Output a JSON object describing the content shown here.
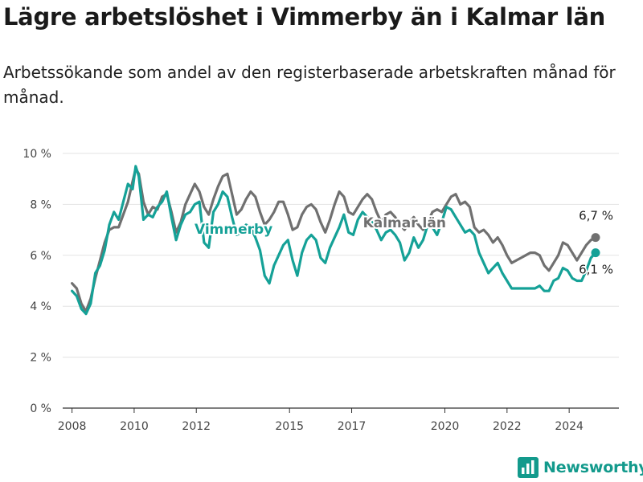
{
  "header": {
    "title": "Lägre arbetslöshet i Vimmerby än i Kalmar län",
    "subtitle": "Arbetssökande som andel av den registerbaserade arbetskraften månad för månad."
  },
  "brand": {
    "name": "Newsworthy",
    "icon": "bar-chart-logo-icon",
    "color": "#139a8c"
  },
  "chart_data": {
    "type": "line",
    "title": "",
    "xlabel": "",
    "ylabel": "",
    "ylim": [
      0,
      10
    ],
    "xlim": [
      2007.7,
      2025.6
    ],
    "y_ticks": [
      0,
      2,
      4,
      6,
      8,
      10
    ],
    "y_tick_labels": [
      "0 %",
      "2 %",
      "4 %",
      "6 %",
      "8 %",
      "10 %"
    ],
    "x_ticks": [
      2008,
      2010,
      2012,
      2015,
      2017,
      2020,
      2022,
      2024
    ],
    "x_tick_labels": [
      "2008",
      "2010",
      "2012",
      "2015",
      "2017",
      "2020",
      "2022",
      "2024"
    ],
    "grid": "horizontal",
    "series": [
      {
        "name": "Kalmar län",
        "color": "#707070",
        "end_label": "6,7 %",
        "points": [
          [
            2008.0,
            4.9
          ],
          [
            2008.15,
            4.7
          ],
          [
            2008.3,
            4.1
          ],
          [
            2008.45,
            3.8
          ],
          [
            2008.6,
            4.3
          ],
          [
            2008.75,
            5.1
          ],
          [
            2008.9,
            5.8
          ],
          [
            2009.05,
            6.5
          ],
          [
            2009.2,
            7.0
          ],
          [
            2009.35,
            7.1
          ],
          [
            2009.5,
            7.1
          ],
          [
            2009.65,
            7.6
          ],
          [
            2009.8,
            8.1
          ],
          [
            2009.95,
            8.9
          ],
          [
            2010.05,
            9.4
          ],
          [
            2010.15,
            9.2
          ],
          [
            2010.3,
            8.1
          ],
          [
            2010.45,
            7.6
          ],
          [
            2010.6,
            7.9
          ],
          [
            2010.75,
            7.8
          ],
          [
            2010.9,
            8.3
          ],
          [
            2011.05,
            8.4
          ],
          [
            2011.2,
            7.7
          ],
          [
            2011.35,
            6.9
          ],
          [
            2011.5,
            7.3
          ],
          [
            2011.65,
            8.0
          ],
          [
            2011.8,
            8.4
          ],
          [
            2011.95,
            8.8
          ],
          [
            2012.1,
            8.5
          ],
          [
            2012.25,
            7.9
          ],
          [
            2012.4,
            7.6
          ],
          [
            2012.55,
            8.2
          ],
          [
            2012.7,
            8.7
          ],
          [
            2012.85,
            9.1
          ],
          [
            2013.0,
            9.2
          ],
          [
            2013.15,
            8.4
          ],
          [
            2013.3,
            7.6
          ],
          [
            2013.45,
            7.8
          ],
          [
            2013.6,
            8.2
          ],
          [
            2013.75,
            8.5
          ],
          [
            2013.9,
            8.3
          ],
          [
            2014.05,
            7.7
          ],
          [
            2014.2,
            7.2
          ],
          [
            2014.35,
            7.4
          ],
          [
            2014.5,
            7.7
          ],
          [
            2014.65,
            8.1
          ],
          [
            2014.8,
            8.1
          ],
          [
            2014.95,
            7.6
          ],
          [
            2015.1,
            7.0
          ],
          [
            2015.25,
            7.1
          ],
          [
            2015.4,
            7.6
          ],
          [
            2015.55,
            7.9
          ],
          [
            2015.7,
            8.0
          ],
          [
            2015.85,
            7.8
          ],
          [
            2016.0,
            7.3
          ],
          [
            2016.15,
            6.9
          ],
          [
            2016.3,
            7.4
          ],
          [
            2016.45,
            8.0
          ],
          [
            2016.6,
            8.5
          ],
          [
            2016.75,
            8.3
          ],
          [
            2016.9,
            7.7
          ],
          [
            2017.05,
            7.6
          ],
          [
            2017.2,
            7.9
          ],
          [
            2017.35,
            8.2
          ],
          [
            2017.5,
            8.4
          ],
          [
            2017.65,
            8.2
          ],
          [
            2017.8,
            7.7
          ],
          [
            2017.95,
            7.3
          ],
          [
            2018.1,
            7.6
          ],
          [
            2018.25,
            7.7
          ],
          [
            2018.4,
            7.5
          ],
          [
            2018.55,
            7.2
          ],
          [
            2018.7,
            7.0
          ],
          [
            2018.85,
            7.3
          ],
          [
            2019.0,
            7.5
          ],
          [
            2019.15,
            7.2
          ],
          [
            2019.3,
            7.0
          ],
          [
            2019.45,
            7.3
          ],
          [
            2019.6,
            7.7
          ],
          [
            2019.75,
            7.8
          ],
          [
            2019.9,
            7.7
          ],
          [
            2020.05,
            8.0
          ],
          [
            2020.2,
            8.3
          ],
          [
            2020.35,
            8.4
          ],
          [
            2020.5,
            8.0
          ],
          [
            2020.65,
            8.1
          ],
          [
            2020.8,
            7.9
          ],
          [
            2020.95,
            7.1
          ],
          [
            2021.1,
            6.9
          ],
          [
            2021.25,
            7.0
          ],
          [
            2021.4,
            6.8
          ],
          [
            2021.55,
            6.5
          ],
          [
            2021.7,
            6.7
          ],
          [
            2021.85,
            6.4
          ],
          [
            2022.0,
            6.0
          ],
          [
            2022.15,
            5.7
          ],
          [
            2022.3,
            5.8
          ],
          [
            2022.45,
            5.9
          ],
          [
            2022.6,
            6.0
          ],
          [
            2022.75,
            6.1
          ],
          [
            2022.9,
            6.1
          ],
          [
            2023.05,
            6.0
          ],
          [
            2023.2,
            5.6
          ],
          [
            2023.35,
            5.4
          ],
          [
            2023.5,
            5.7
          ],
          [
            2023.65,
            6.0
          ],
          [
            2023.8,
            6.5
          ],
          [
            2023.95,
            6.4
          ],
          [
            2024.1,
            6.1
          ],
          [
            2024.25,
            5.8
          ],
          [
            2024.4,
            6.1
          ],
          [
            2024.55,
            6.4
          ],
          [
            2024.7,
            6.6
          ],
          [
            2024.85,
            6.7
          ]
        ]
      },
      {
        "name": "Vimmerby",
        "color": "#15a197",
        "end_label": "6,1 %",
        "points": [
          [
            2008.0,
            4.6
          ],
          [
            2008.15,
            4.4
          ],
          [
            2008.3,
            3.9
          ],
          [
            2008.45,
            3.7
          ],
          [
            2008.6,
            4.1
          ],
          [
            2008.75,
            5.3
          ],
          [
            2008.9,
            5.6
          ],
          [
            2009.05,
            6.2
          ],
          [
            2009.2,
            7.2
          ],
          [
            2009.35,
            7.7
          ],
          [
            2009.5,
            7.4
          ],
          [
            2009.65,
            8.1
          ],
          [
            2009.8,
            8.8
          ],
          [
            2009.95,
            8.6
          ],
          [
            2010.05,
            9.5
          ],
          [
            2010.15,
            9.1
          ],
          [
            2010.3,
            7.4
          ],
          [
            2010.45,
            7.6
          ],
          [
            2010.6,
            7.5
          ],
          [
            2010.75,
            7.9
          ],
          [
            2010.9,
            8.1
          ],
          [
            2011.05,
            8.5
          ],
          [
            2011.2,
            7.5
          ],
          [
            2011.35,
            6.6
          ],
          [
            2011.5,
            7.2
          ],
          [
            2011.65,
            7.6
          ],
          [
            2011.8,
            7.7
          ],
          [
            2011.95,
            8.0
          ],
          [
            2012.1,
            8.1
          ],
          [
            2012.25,
            6.5
          ],
          [
            2012.4,
            6.3
          ],
          [
            2012.55,
            7.7
          ],
          [
            2012.7,
            8.0
          ],
          [
            2012.85,
            8.5
          ],
          [
            2013.0,
            8.3
          ],
          [
            2013.15,
            7.5
          ],
          [
            2013.3,
            6.8
          ],
          [
            2013.45,
            6.9
          ],
          [
            2013.6,
            7.2
          ],
          [
            2013.75,
            7.1
          ],
          [
            2013.9,
            6.7
          ],
          [
            2014.05,
            6.2
          ],
          [
            2014.2,
            5.2
          ],
          [
            2014.35,
            4.9
          ],
          [
            2014.5,
            5.6
          ],
          [
            2014.65,
            6.0
          ],
          [
            2014.8,
            6.4
          ],
          [
            2014.95,
            6.6
          ],
          [
            2015.1,
            5.8
          ],
          [
            2015.25,
            5.2
          ],
          [
            2015.4,
            6.1
          ],
          [
            2015.55,
            6.6
          ],
          [
            2015.7,
            6.8
          ],
          [
            2015.85,
            6.6
          ],
          [
            2016.0,
            5.9
          ],
          [
            2016.15,
            5.7
          ],
          [
            2016.3,
            6.3
          ],
          [
            2016.45,
            6.7
          ],
          [
            2016.6,
            7.1
          ],
          [
            2016.75,
            7.6
          ],
          [
            2016.9,
            6.9
          ],
          [
            2017.05,
            6.8
          ],
          [
            2017.2,
            7.4
          ],
          [
            2017.35,
            7.7
          ],
          [
            2017.5,
            7.5
          ],
          [
            2017.65,
            7.3
          ],
          [
            2017.8,
            7.0
          ],
          [
            2017.95,
            6.6
          ],
          [
            2018.1,
            6.9
          ],
          [
            2018.25,
            7.0
          ],
          [
            2018.4,
            6.8
          ],
          [
            2018.55,
            6.5
          ],
          [
            2018.7,
            5.8
          ],
          [
            2018.85,
            6.1
          ],
          [
            2019.0,
            6.7
          ],
          [
            2019.15,
            6.3
          ],
          [
            2019.3,
            6.6
          ],
          [
            2019.45,
            7.2
          ],
          [
            2019.6,
            7.1
          ],
          [
            2019.75,
            6.8
          ],
          [
            2019.9,
            7.3
          ],
          [
            2020.05,
            7.9
          ],
          [
            2020.2,
            7.8
          ],
          [
            2020.35,
            7.5
          ],
          [
            2020.5,
            7.2
          ],
          [
            2020.65,
            6.9
          ],
          [
            2020.8,
            7.0
          ],
          [
            2020.95,
            6.8
          ],
          [
            2021.1,
            6.1
          ],
          [
            2021.25,
            5.7
          ],
          [
            2021.4,
            5.3
          ],
          [
            2021.55,
            5.5
          ],
          [
            2021.7,
            5.7
          ],
          [
            2021.85,
            5.3
          ],
          [
            2022.0,
            5.0
          ],
          [
            2022.15,
            4.7
          ],
          [
            2022.3,
            4.7
          ],
          [
            2022.45,
            4.7
          ],
          [
            2022.6,
            4.7
          ],
          [
            2022.75,
            4.7
          ],
          [
            2022.9,
            4.7
          ],
          [
            2023.05,
            4.8
          ],
          [
            2023.2,
            4.6
          ],
          [
            2023.35,
            4.6
          ],
          [
            2023.5,
            5.0
          ],
          [
            2023.65,
            5.1
          ],
          [
            2023.8,
            5.5
          ],
          [
            2023.95,
            5.4
          ],
          [
            2024.1,
            5.1
          ],
          [
            2024.25,
            5.0
          ],
          [
            2024.4,
            5.0
          ],
          [
            2024.55,
            5.4
          ],
          [
            2024.7,
            5.9
          ],
          [
            2024.85,
            6.1
          ]
        ]
      }
    ]
  }
}
